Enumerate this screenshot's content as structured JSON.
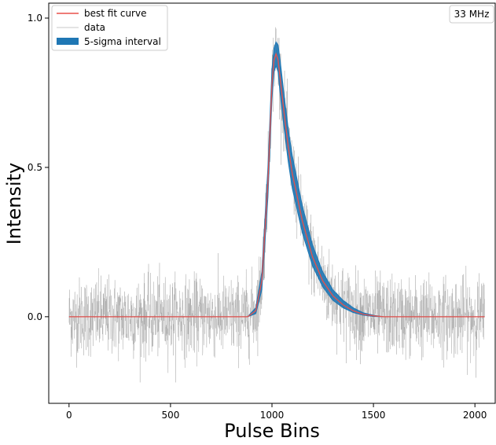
{
  "chart_data": {
    "type": "line",
    "xlabel": "Pulse Bins",
    "ylabel": "Intensity",
    "xlim": [
      -100,
      2100
    ],
    "ylim": [
      -0.29,
      1.05
    ],
    "x_ticks": [
      0,
      500,
      1000,
      1500,
      2000
    ],
    "x_tick_labels": [
      "0",
      "500",
      "1000",
      "1500",
      "2000"
    ],
    "y_ticks": [
      0.0,
      0.5,
      1.0
    ],
    "y_tick_labels": [
      "0.0",
      "0.5",
      "1.0"
    ],
    "frequency_label": "33 MHz",
    "legend": {
      "placement": "top-left",
      "entries": [
        {
          "label": "best fit curve",
          "color": "#e8514a",
          "style": "line"
        },
        {
          "label": "data",
          "color": "#c8c8c8",
          "style": "line"
        },
        {
          "label": "5-sigma interval",
          "color": "#1f77b4",
          "style": "patch"
        }
      ]
    },
    "series": [
      {
        "name": "best fit curve",
        "color": "#e8514a",
        "x": [
          0,
          880,
          920,
          950,
          980,
          1000,
          1010,
          1020,
          1030,
          1040,
          1060,
          1080,
          1100,
          1150,
          1200,
          1250,
          1300,
          1350,
          1400,
          1450,
          1500,
          1550,
          2048
        ],
        "y": [
          0,
          0,
          0.02,
          0.12,
          0.45,
          0.78,
          0.86,
          0.88,
          0.86,
          0.8,
          0.68,
          0.57,
          0.48,
          0.32,
          0.2,
          0.12,
          0.07,
          0.04,
          0.02,
          0.008,
          0.003,
          0,
          0
        ]
      },
      {
        "name": "5-sigma interval",
        "color": "#1f77b4",
        "x": [
          0,
          880,
          920,
          950,
          980,
          1000,
          1010,
          1020,
          1030,
          1040,
          1060,
          1080,
          1100,
          1150,
          1200,
          1250,
          1300,
          1350,
          1400,
          1450,
          1500,
          1550,
          2048
        ],
        "lower": [
          0,
          0,
          0.01,
          0.09,
          0.4,
          0.73,
          0.82,
          0.84,
          0.82,
          0.75,
          0.63,
          0.52,
          0.43,
          0.28,
          0.17,
          0.1,
          0.055,
          0.03,
          0.014,
          0.005,
          0.001,
          0,
          0
        ],
        "upper": [
          0,
          0,
          0.03,
          0.15,
          0.5,
          0.83,
          0.9,
          0.92,
          0.91,
          0.86,
          0.74,
          0.63,
          0.54,
          0.37,
          0.24,
          0.15,
          0.09,
          0.055,
          0.03,
          0.013,
          0.005,
          0,
          0
        ]
      },
      {
        "name": "data",
        "color": "#8a8a8a",
        "x_range": [
          0,
          2048
        ],
        "noise_sigma": 0.065,
        "y_min": -0.22,
        "y_max": 0.99
      }
    ]
  }
}
